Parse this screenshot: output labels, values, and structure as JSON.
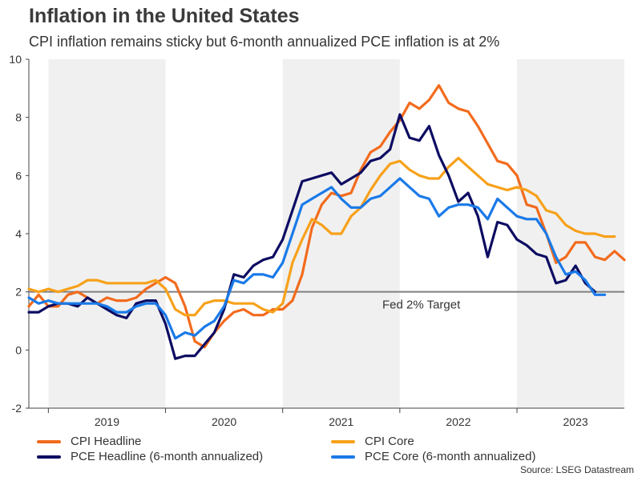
{
  "title": "Inflation in the United States",
  "subtitle": "CPI inflation remains sticky but 6-month annualized PCE inflation is at 2%",
  "source": "Source: LSEG Datastream",
  "chart_data": {
    "type": "line",
    "title": "Inflation in the United States",
    "subtitle": "CPI inflation remains sticky but 6-month annualized PCE inflation is at 2%",
    "xlabel": "",
    "ylabel": "",
    "ylim": [
      -2,
      10
    ],
    "yticks": [
      -2,
      0,
      2,
      4,
      6,
      8,
      10
    ],
    "year_labels": [
      "2019",
      "2020",
      "2021",
      "2022",
      "2023"
    ],
    "x_start": "2018-11",
    "x_end": "2023-12",
    "shaded_years": [
      "2019",
      "2021",
      "2023"
    ],
    "reference_line": {
      "value": 2,
      "label": "Fed 2% Target",
      "color": "#7f7f7f"
    },
    "legend_position": "bottom",
    "series": [
      {
        "name": "CPI Headline",
        "color": "#f26b1d",
        "start": "2018-11",
        "values": [
          1.5,
          1.9,
          1.5,
          1.5,
          1.9,
          2.0,
          1.8,
          1.6,
          1.8,
          1.7,
          1.7,
          1.8,
          2.1,
          2.3,
          2.5,
          2.3,
          1.5,
          0.3,
          0.1,
          0.6,
          1.0,
          1.3,
          1.4,
          1.2,
          1.2,
          1.4,
          1.4,
          1.7,
          2.6,
          4.2,
          5.0,
          5.4,
          5.3,
          5.4,
          6.2,
          6.8,
          7.0,
          7.5,
          7.9,
          8.5,
          8.3,
          8.6,
          9.1,
          8.5,
          8.3,
          8.2,
          7.7,
          7.1,
          6.5,
          6.4,
          6.0,
          5.0,
          4.9,
          4.0,
          3.0,
          3.2,
          3.7,
          3.7,
          3.2,
          3.1,
          3.4,
          3.1
        ]
      },
      {
        "name": "CPI Core",
        "color": "#f7a11a",
        "start": "2018-11",
        "values": [
          2.1,
          2.0,
          2.1,
          2.0,
          2.1,
          2.2,
          2.4,
          2.4,
          2.3,
          2.3,
          2.3,
          2.3,
          2.3,
          2.4,
          2.1,
          1.4,
          1.2,
          1.2,
          1.6,
          1.7,
          1.7,
          1.6,
          1.6,
          1.6,
          1.4,
          1.3,
          1.6,
          3.0,
          3.8,
          4.5,
          4.3,
          4.0,
          4.0,
          4.6,
          4.9,
          5.5,
          6.0,
          6.4,
          6.5,
          6.2,
          6.0,
          5.9,
          5.9,
          6.3,
          6.6,
          6.3,
          6.0,
          5.7,
          5.6,
          5.5,
          5.6,
          5.5,
          5.3,
          4.8,
          4.7,
          4.3,
          4.1,
          4.0,
          4.0,
          3.9,
          3.9
        ]
      },
      {
        "name": "PCE Headline (6-month annualized)",
        "color": "#0d0c62",
        "start": "2018-11",
        "values": [
          1.3,
          1.3,
          1.5,
          1.6,
          1.6,
          1.5,
          1.8,
          1.6,
          1.4,
          1.2,
          1.1,
          1.6,
          1.7,
          1.7,
          0.9,
          -0.3,
          -0.2,
          -0.2,
          0.2,
          0.6,
          1.4,
          2.6,
          2.5,
          2.9,
          3.1,
          3.2,
          3.8,
          4.8,
          5.8,
          5.9,
          6.0,
          6.1,
          5.7,
          5.9,
          6.1,
          6.5,
          6.6,
          6.9,
          8.1,
          7.3,
          7.2,
          7.7,
          6.7,
          6.0,
          5.1,
          5.4,
          4.6,
          3.2,
          4.4,
          4.3,
          3.8,
          3.6,
          3.3,
          3.2,
          2.3,
          2.4,
          2.9,
          2.3,
          2.0
        ]
      },
      {
        "name": "PCE Core (6-month annualized)",
        "color": "#1a7ae8",
        "start": "2018-11",
        "values": [
          1.8,
          1.6,
          1.7,
          1.6,
          1.6,
          1.6,
          1.6,
          1.6,
          1.5,
          1.3,
          1.3,
          1.5,
          1.6,
          1.6,
          1.2,
          0.4,
          0.6,
          0.5,
          0.8,
          1.0,
          1.5,
          2.4,
          2.3,
          2.6,
          2.6,
          2.5,
          3.0,
          4.0,
          5.0,
          5.2,
          5.4,
          5.6,
          5.2,
          4.9,
          4.9,
          5.2,
          5.3,
          5.6,
          5.9,
          5.6,
          5.3,
          5.2,
          4.6,
          4.9,
          5.0,
          5.0,
          4.9,
          4.5,
          5.2,
          4.9,
          4.6,
          4.5,
          4.5,
          4.0,
          3.2,
          2.6,
          2.7,
          2.4,
          1.9,
          1.9
        ]
      }
    ]
  }
}
